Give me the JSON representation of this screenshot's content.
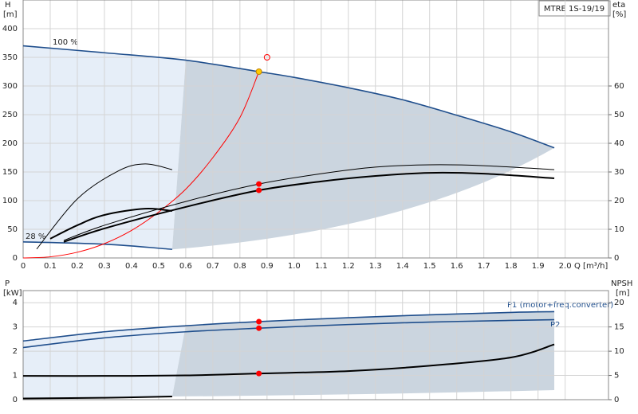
{
  "chart_data": [
    {
      "type": "line",
      "title": "MTRE 1S-19/19",
      "xlabel": "Q [m³/h]",
      "ylabel": "H",
      "yunit": "[m]",
      "y2label": "eta",
      "y2unit": "[%]",
      "xlim": [
        0,
        2.16
      ],
      "ylim": [
        0,
        450
      ],
      "y2lim": [
        0,
        90
      ],
      "grid": true,
      "xticks": [
        0,
        0.1,
        0.2,
        0.3,
        0.4,
        0.5,
        0.6,
        0.7,
        0.8,
        0.9,
        {
          "value": 1,
          "label": "1.0"
        },
        1.1,
        1.2,
        1.3,
        1.4,
        1.5,
        1.6,
        1.7,
        1.8,
        1.9,
        {
          "value": 2,
          "label": "2.0"
        }
      ],
      "yticks": [
        0,
        50,
        100,
        150,
        200,
        250,
        300,
        350,
        400
      ],
      "y2ticks": [
        0,
        10,
        20,
        30,
        40,
        50,
        60
      ],
      "series": [
        {
          "name": "100 %",
          "color": "#1f4e8c",
          "x": [
            0,
            0.3,
            0.6,
            0.87,
            1.0,
            1.2,
            1.4,
            1.6,
            1.8,
            1.96
          ],
          "values": [
            370,
            358,
            345,
            325,
            315,
            297,
            276,
            249,
            220,
            192
          ]
        },
        {
          "name": "28 %",
          "color": "#1f4e8c",
          "x": [
            0,
            0.3,
            0.55
          ],
          "values": [
            28,
            24,
            15
          ]
        },
        {
          "color": "#ff0000",
          "x": [
            0,
            0.1,
            0.2,
            0.3,
            0.4,
            0.5,
            0.6,
            0.7,
            0.8,
            0.87
          ],
          "values": [
            0,
            2,
            10,
            25,
            48,
            80,
            120,
            175,
            245,
            325
          ]
        },
        {
          "color": "#000000",
          "axis": "y2",
          "x": [
            0.15,
            0.3,
            0.6,
            0.87,
            1.1,
            1.3,
            1.5,
            1.7,
            1.96
          ],
          "values": [
            6.1,
            11.4,
            19.7,
            25.8,
            29.4,
            31.7,
            32.5,
            32.2,
            30.8
          ]
        },
        {
          "color": "#000000",
          "axis": "y2",
          "thick": true,
          "x": [
            0.15,
            0.3,
            0.6,
            0.87,
            1.1,
            1.3,
            1.5,
            1.7,
            1.96
          ],
          "values": [
            5.6,
            10.3,
            17.8,
            23.6,
            26.7,
            28.6,
            29.7,
            29.4,
            27.8
          ]
        },
        {
          "color": "#000000",
          "axis": "y2",
          "x": [
            0.05,
            0.2,
            0.35,
            0.45,
            0.55
          ],
          "values": [
            3.1,
            20.6,
            30.3,
            32.8,
            30.8
          ]
        },
        {
          "color": "#000000",
          "axis": "y2",
          "thick": true,
          "x": [
            0.1,
            0.2,
            0.3,
            0.45,
            0.55
          ],
          "values": [
            6.7,
            11.4,
            15,
            17.2,
            16.4
          ]
        },
        {
          "color": "#ff0000",
          "axis": "y2",
          "marker": "dot",
          "x": [
            0.87,
            0.87
          ],
          "values": [
            25.8,
            23.6
          ]
        },
        {
          "color": "#ffcc00",
          "marker": "dot",
          "x": [
            0.87
          ],
          "values": [
            325
          ]
        },
        {
          "color": "#ff0000",
          "marker": "ring",
          "x": [
            0.9
          ],
          "values": [
            350
          ]
        }
      ]
    },
    {
      "type": "line",
      "ylabel": "P",
      "yunit": "[kW]",
      "y2label": "NPSH",
      "y2unit": "[m]",
      "xlim": [
        0,
        2.16
      ],
      "ylim": [
        0,
        4.5
      ],
      "y2lim": [
        0,
        22.5
      ],
      "grid": true,
      "yticks": [
        0,
        1,
        2,
        3,
        4
      ],
      "y2ticks": [
        0,
        5,
        10,
        15,
        20
      ],
      "series": [
        {
          "name": "P1 (motor+freq.converter)",
          "color": "#1f4e8c",
          "x": [
            0,
            0.3,
            0.6,
            0.87,
            1.2,
            1.5,
            1.8,
            1.96
          ],
          "values": [
            2.42,
            2.8,
            3.05,
            3.22,
            3.38,
            3.5,
            3.6,
            3.63
          ]
        },
        {
          "name": "P2",
          "color": "#1f4e8c",
          "x": [
            0,
            0.3,
            0.6,
            0.87,
            1.2,
            1.5,
            1.8,
            1.96
          ],
          "values": [
            2.15,
            2.55,
            2.8,
            2.95,
            3.1,
            3.2,
            3.27,
            3.3
          ]
        },
        {
          "color": "#000000",
          "axis": "y2",
          "thick": true,
          "x": [
            0,
            0.3,
            0.6,
            0.87,
            1.2,
            1.5,
            1.8,
            1.96
          ],
          "values": [
            4.9,
            4.9,
            5.0,
            5.4,
            5.9,
            7.0,
            8.7,
            11.4
          ]
        },
        {
          "color": "#000000",
          "thick": true,
          "x": [
            0,
            0.3,
            0.55
          ],
          "values": [
            0.05,
            0.08,
            0.13
          ]
        },
        {
          "color": "#ff0000",
          "marker": "dot",
          "x": [
            0.87,
            0.87
          ],
          "values": [
            3.22,
            2.95
          ]
        },
        {
          "color": "#ff0000",
          "axis": "y2",
          "marker": "dot",
          "x": [
            0.87
          ],
          "values": [
            5.4
          ]
        }
      ]
    }
  ]
}
